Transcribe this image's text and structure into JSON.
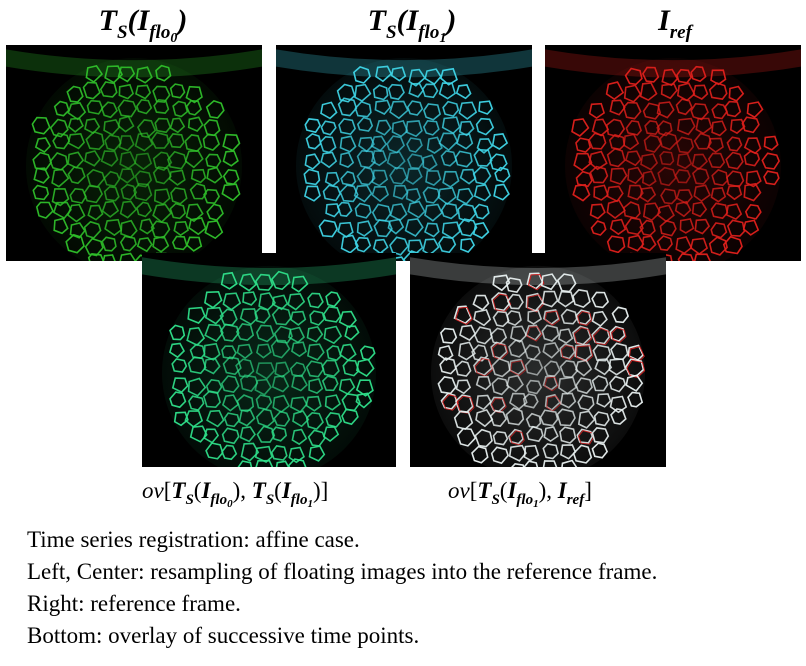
{
  "top_labels": {
    "left": {
      "T": "T",
      "s": "S",
      "I": "I",
      "sub": "flo",
      "subsub": "0"
    },
    "center": {
      "T": "T",
      "s": "S",
      "I": "I",
      "sub": "flo",
      "subsub": "1"
    },
    "right": {
      "I": "I",
      "sub": "ref"
    }
  },
  "bottom_labels": {
    "left": {
      "ov": "ov",
      "open": "[",
      "T1": "T",
      "s1": "S",
      "I1": "I",
      "sub1": "flo",
      "subsub1": "0",
      "sep": ", ",
      "T2": "T",
      "s2": "S",
      "I2": "I",
      "sub2": "flo",
      "subsub2": "1",
      "close": "]"
    },
    "right": {
      "ov": "ov",
      "open": "[",
      "T1": "T",
      "s1": "S",
      "I1": "I",
      "sub1": "flo",
      "subsub1": "1",
      "sep": ", ",
      "I2": "I",
      "sub2": "ref",
      "close": "]"
    }
  },
  "panels": {
    "green": "#2fbf2a",
    "cyan": "#3fd4e6",
    "red": "#e0201c",
    "teal": "#2fe08a",
    "white": "#e8f0f0"
  },
  "caption": [
    "Time series registration: affine case.",
    "Left, Center: resampling of floating images into the reference frame.",
    "Right: reference  frame.",
    "Bottom: overlay of successive time points."
  ]
}
